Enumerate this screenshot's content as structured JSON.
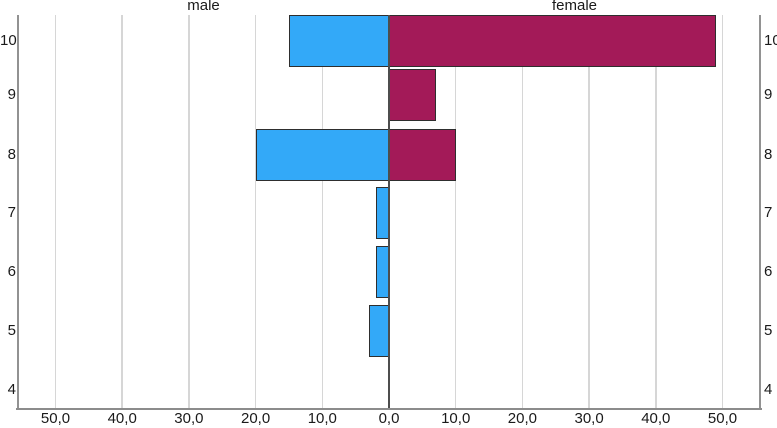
{
  "chart_data": {
    "type": "bar",
    "subtype": "population_pyramid",
    "orientation": "horizontal",
    "title": "",
    "panel_titles": {
      "left": "male",
      "right": "female"
    },
    "categories": [
      "10",
      "9",
      "8",
      "7",
      "6",
      "5",
      "4"
    ],
    "series": [
      {
        "name": "male",
        "side": "left",
        "color": "#33a9f8",
        "values": [
          15,
          0,
          20,
          2,
          2,
          3,
          0
        ]
      },
      {
        "name": "female",
        "side": "right",
        "color": "#a31a58",
        "values": [
          49,
          7,
          10,
          0,
          0,
          0,
          0
        ]
      }
    ],
    "x_axis": {
      "tick_interval": 10,
      "max_each_side": 55.6,
      "decimal_separator": ",",
      "ticks": [
        {
          "v": -50,
          "label": "50,0"
        },
        {
          "v": -40,
          "label": "40,0"
        },
        {
          "v": -30,
          "label": "30,0"
        },
        {
          "v": -20,
          "label": "20,0"
        },
        {
          "v": -10,
          "label": "10,0"
        },
        {
          "v": 0,
          "label": "0,0"
        },
        {
          "v": 10,
          "label": "10,0"
        },
        {
          "v": 20,
          "label": "20,0"
        },
        {
          "v": 30,
          "label": "30,0"
        },
        {
          "v": 40,
          "label": "40,0"
        },
        {
          "v": 50,
          "label": "50,0"
        }
      ]
    },
    "grid": true,
    "legend": "none",
    "colors": {
      "gridline": "#d6d6d6",
      "axis_line": "#8f8f8f",
      "center_line": "#4d4d4d",
      "bar_border": "#2e2e2e",
      "text": "#1a1a1a",
      "background": "#ffffff"
    }
  }
}
